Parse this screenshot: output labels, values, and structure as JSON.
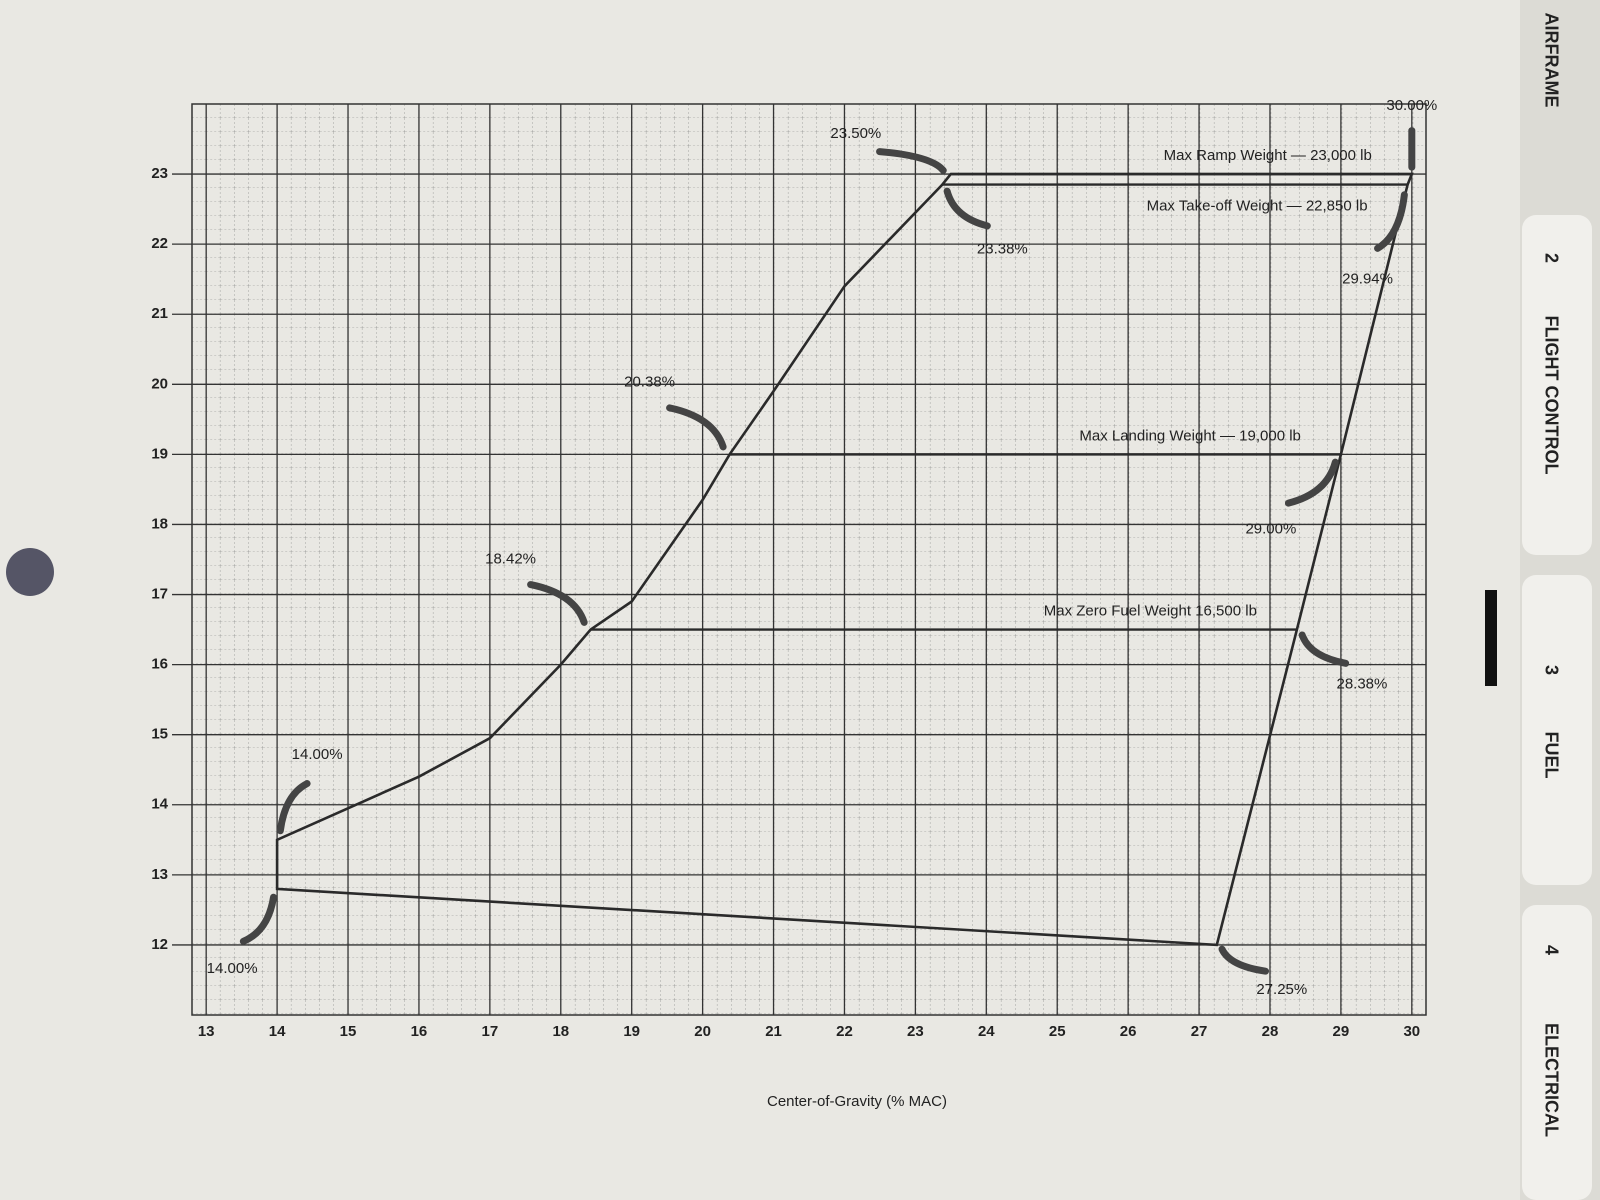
{
  "chart_data": {
    "type": "envelope",
    "xlabel": "Center-of-Gravity (% MAC)",
    "x": [
      14,
      14,
      15,
      16,
      17,
      18,
      18.42,
      19,
      20,
      20.38,
      21,
      22,
      23.38,
      23.5,
      30,
      29.94,
      29,
      28.38,
      27.25
    ],
    "values": [
      12.8,
      13.5,
      13.95,
      14.4,
      14.95,
      16.0,
      16.5,
      16.9,
      18.35,
      19.0,
      19.9,
      21.4,
      22.85,
      23.0,
      23.0,
      22.85,
      19.0,
      16.5,
      12.0
    ],
    "x_labels": [
      "14.00%",
      "14.00%",
      null,
      null,
      null,
      null,
      "18.42%",
      null,
      null,
      "20.38%",
      null,
      null,
      "23.38%",
      "23.50%",
      "30.00%",
      "29.94%",
      "29.00%",
      "28.38%",
      "27.25%"
    ],
    "limits": [
      {
        "label": "Max Ramp Weight — 23,000 lb",
        "y": 23,
        "x": [
          23.5,
          30
        ]
      },
      {
        "label": "Max Take-off Weight — 22,850 lb",
        "y": 22.85,
        "x": [
          23.38,
          29.94
        ]
      },
      {
        "label": "Max Landing Weight — 19,000 lb",
        "y": 19,
        "x": [
          20.38,
          29
        ]
      },
      {
        "label": "Max Zero Fuel Weight 16,500 lb",
        "y": 16.5,
        "x": [
          18.42,
          28.38
        ]
      }
    ],
    "color": "#2a2a2a",
    "xlim": [
      12.8,
      30.2
    ],
    "ylim": [
      11,
      24
    ],
    "xticks": [
      13,
      14,
      15,
      16,
      17,
      18,
      19,
      20,
      21,
      22,
      23,
      24,
      25,
      26,
      27,
      28,
      29,
      30
    ],
    "yticks": [
      12,
      13,
      14,
      15,
      16,
      17,
      18,
      19,
      20,
      21,
      22,
      23
    ],
    "grid": true
  },
  "tabs": [
    "AIRFRAME",
    "2",
    "FLIGHT CONTROL",
    "3",
    "FUEL",
    "4",
    "ELECTRICAL"
  ]
}
